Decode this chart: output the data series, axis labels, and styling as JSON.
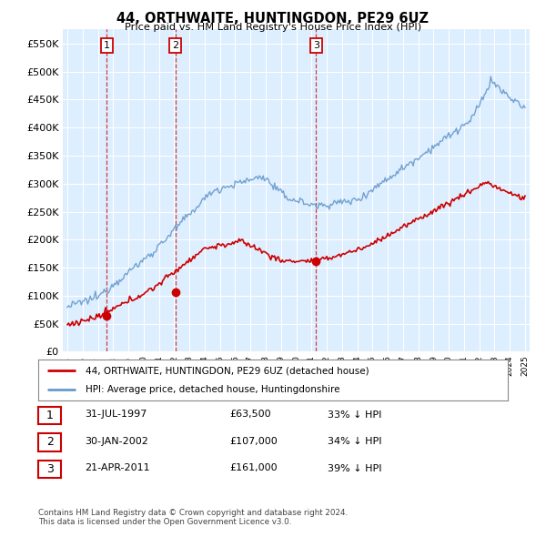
{
  "title": "44, ORTHWAITE, HUNTINGDON, PE29 6UZ",
  "subtitle": "Price paid vs. HM Land Registry's House Price Index (HPI)",
  "xlim": [
    1994.7,
    2025.3
  ],
  "ylim": [
    0,
    575000
  ],
  "yticks": [
    0,
    50000,
    100000,
    150000,
    200000,
    250000,
    300000,
    350000,
    400000,
    450000,
    500000,
    550000
  ],
  "ytick_labels": [
    "£0",
    "£50K",
    "£100K",
    "£150K",
    "£200K",
    "£250K",
    "£300K",
    "£350K",
    "£400K",
    "£450K",
    "£500K",
    "£550K"
  ],
  "purchases": [
    {
      "date": 1997.58,
      "price": 63500,
      "label": "1"
    },
    {
      "date": 2002.08,
      "price": 107000,
      "label": "2"
    },
    {
      "date": 2011.31,
      "price": 161000,
      "label": "3"
    }
  ],
  "purchase_line_color": "#cc0000",
  "hpi_line_color": "#6699cc",
  "plot_bg_color": "#ddeeff",
  "legend_entry1": "44, ORTHWAITE, HUNTINGDON, PE29 6UZ (detached house)",
  "legend_entry2": "HPI: Average price, detached house, Huntingdonshire",
  "table_rows": [
    [
      "1",
      "31-JUL-1997",
      "£63,500",
      "33% ↓ HPI"
    ],
    [
      "2",
      "30-JAN-2002",
      "£107,000",
      "34% ↓ HPI"
    ],
    [
      "3",
      "21-APR-2011",
      "£161,000",
      "39% ↓ HPI"
    ]
  ],
  "footer1": "Contains HM Land Registry data © Crown copyright and database right 2024.",
  "footer2": "This data is licensed under the Open Government Licence v3.0."
}
